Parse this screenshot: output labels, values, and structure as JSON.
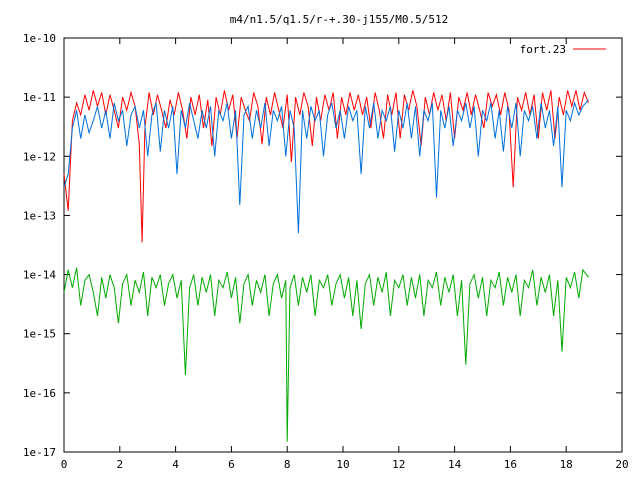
{
  "chart_data": {
    "type": "line",
    "title": "m4/n1.5/q1.5/r-+.30-j155/M0.5/512",
    "xlabel": "",
    "ylabel": "",
    "xlim": [
      0,
      20
    ],
    "ylim": [
      1e-17,
      1e-10
    ],
    "yscale": "log",
    "grid": false,
    "legend_position": "top-right",
    "x_ticks": [
      "0",
      "2",
      "4",
      "6",
      "8",
      "10",
      "12",
      "14",
      "16",
      "18",
      "20"
    ],
    "y_ticks": [
      "1e-10",
      "1e-11",
      "1e-12",
      "1e-13",
      "1e-14",
      "1e-15",
      "1e-16",
      "1e-17"
    ],
    "x_tick_values": [
      0,
      2,
      4,
      6,
      8,
      10,
      12,
      14,
      16,
      18,
      20
    ],
    "y_tick_values": [
      1e-10,
      1e-11,
      1e-12,
      1e-13,
      1e-14,
      1e-15,
      1e-16,
      1e-17
    ],
    "series": [
      {
        "name": "fort.23",
        "color": "#ff0000",
        "x": [
          0.0,
          0.15,
          0.3,
          0.45,
          0.6,
          0.75,
          0.9,
          1.05,
          1.2,
          1.35,
          1.5,
          1.65,
          1.8,
          1.95,
          2.1,
          2.25,
          2.4,
          2.55,
          2.7,
          2.8,
          2.9,
          3.05,
          3.2,
          3.35,
          3.5,
          3.65,
          3.8,
          3.95,
          4.1,
          4.25,
          4.4,
          4.55,
          4.7,
          4.85,
          5.0,
          5.15,
          5.3,
          5.45,
          5.6,
          5.75,
          5.9,
          6.05,
          6.2,
          6.35,
          6.5,
          6.65,
          6.8,
          6.95,
          7.1,
          7.25,
          7.4,
          7.55,
          7.7,
          7.85,
          8.0,
          8.15,
          8.3,
          8.45,
          8.6,
          8.75,
          8.9,
          9.05,
          9.2,
          9.35,
          9.5,
          9.65,
          9.8,
          9.95,
          10.1,
          10.25,
          10.4,
          10.55,
          10.7,
          10.85,
          11.0,
          11.15,
          11.3,
          11.45,
          11.6,
          11.75,
          11.9,
          12.05,
          12.2,
          12.35,
          12.5,
          12.65,
          12.8,
          12.95,
          13.1,
          13.25,
          13.4,
          13.55,
          13.7,
          13.85,
          14.0,
          14.15,
          14.3,
          14.45,
          14.6,
          14.75,
          14.9,
          15.05,
          15.2,
          15.35,
          15.5,
          15.65,
          15.8,
          15.95,
          16.1,
          16.25,
          16.4,
          16.55,
          16.7,
          16.85,
          17.0,
          17.15,
          17.3,
          17.45,
          17.6,
          17.75,
          17.9,
          18.05,
          18.2,
          18.35,
          18.5,
          18.65,
          18.8
        ],
        "values": [
          5e-13,
          1.2e-13,
          4e-12,
          8e-12,
          5e-12,
          1.1e-11,
          6e-12,
          1.3e-11,
          7e-12,
          1.2e-11,
          5e-12,
          1.1e-11,
          6e-12,
          3e-12,
          1e-11,
          6e-12,
          1.2e-11,
          7e-12,
          1.6e-12,
          3.5e-14,
          3e-12,
          1.2e-11,
          5e-12,
          1.1e-11,
          6e-12,
          3e-12,
          9e-12,
          5e-12,
          1.2e-11,
          6e-12,
          2e-12,
          1e-11,
          5e-12,
          1.1e-11,
          3e-12,
          9e-12,
          1.5e-12,
          1e-11,
          5e-12,
          1.3e-11,
          6e-12,
          1.1e-11,
          2e-12,
          1e-11,
          6e-12,
          4e-12,
          1.2e-11,
          7e-12,
          1.6e-12,
          1e-11,
          5e-12,
          1.2e-11,
          6e-12,
          3e-12,
          1.1e-11,
          8e-13,
          1e-11,
          5e-12,
          1.2e-11,
          7e-12,
          1.5e-12,
          1e-11,
          4e-12,
          1.1e-11,
          6e-12,
          1.2e-11,
          2e-12,
          1e-11,
          5e-12,
          1.2e-11,
          6e-12,
          1.1e-11,
          5e-12,
          1e-11,
          3e-12,
          1.2e-11,
          6e-12,
          2e-12,
          1.1e-11,
          5e-12,
          1.2e-11,
          2e-12,
          1.1e-11,
          6e-12,
          1.3e-11,
          7e-12,
          1.5e-12,
          1e-11,
          5e-12,
          1.2e-11,
          6e-12,
          1.1e-11,
          4e-12,
          1.2e-11,
          2e-12,
          1e-11,
          6e-12,
          1.2e-11,
          5e-12,
          1.1e-11,
          6e-12,
          3e-12,
          1.2e-11,
          7e-12,
          1.1e-11,
          5e-12,
          1.2e-11,
          6e-12,
          3e-13,
          1e-11,
          6e-12,
          1.2e-11,
          5e-12,
          1.1e-11,
          2e-12,
          1.2e-11,
          6e-12,
          1.3e-11,
          2e-12,
          1e-11,
          5e-12,
          1.3e-11,
          7e-12,
          1.3e-11,
          6e-12,
          1.2e-11,
          8e-12
        ]
      },
      {
        "name": "",
        "color": "#0070dd",
        "x": [
          0.0,
          0.15,
          0.3,
          0.45,
          0.6,
          0.75,
          0.9,
          1.05,
          1.2,
          1.35,
          1.5,
          1.65,
          1.8,
          1.95,
          2.1,
          2.25,
          2.4,
          2.55,
          2.7,
          2.85,
          3.0,
          3.15,
          3.3,
          3.45,
          3.6,
          3.75,
          3.9,
          4.05,
          4.2,
          4.35,
          4.5,
          4.65,
          4.8,
          4.95,
          5.1,
          5.25,
          5.4,
          5.55,
          5.7,
          5.85,
          6.0,
          6.15,
          6.3,
          6.45,
          6.6,
          6.75,
          6.9,
          7.05,
          7.2,
          7.35,
          7.5,
          7.65,
          7.8,
          7.95,
          8.1,
          8.25,
          8.4,
          8.55,
          8.7,
          8.85,
          9.0,
          9.15,
          9.3,
          9.45,
          9.6,
          9.75,
          9.9,
          10.05,
          10.2,
          10.35,
          10.5,
          10.65,
          10.8,
          10.95,
          11.1,
          11.25,
          11.4,
          11.55,
          11.7,
          11.85,
          12.0,
          12.15,
          12.3,
          12.45,
          12.6,
          12.75,
          12.9,
          13.05,
          13.2,
          13.35,
          13.5,
          13.65,
          13.8,
          13.95,
          14.1,
          14.25,
          14.4,
          14.55,
          14.7,
          14.85,
          15.0,
          15.15,
          15.3,
          15.45,
          15.6,
          15.75,
          15.9,
          16.05,
          16.2,
          16.35,
          16.5,
          16.65,
          16.8,
          16.95,
          17.1,
          17.25,
          17.4,
          17.55,
          17.7,
          17.85,
          18.0,
          18.15,
          18.3,
          18.45,
          18.6,
          18.8
        ],
        "values": [
          3e-13,
          5e-13,
          3e-12,
          6e-12,
          2e-12,
          5e-12,
          2.5e-12,
          4e-12,
          7e-12,
          3e-12,
          6e-12,
          2e-12,
          8e-12,
          4e-12,
          6e-12,
          1.5e-12,
          5e-12,
          7e-12,
          3e-12,
          6e-12,
          1e-12,
          5e-12,
          8e-12,
          1.2e-12,
          6e-12,
          3e-12,
          7e-12,
          5e-13,
          6e-12,
          3e-12,
          8e-12,
          4e-12,
          2e-12,
          6e-12,
          3e-12,
          7e-12,
          1e-12,
          6e-12,
          4e-12,
          8e-12,
          2e-12,
          6e-12,
          1.5e-13,
          5e-12,
          7e-12,
          2e-12,
          6e-12,
          3e-12,
          8e-12,
          1.5e-12,
          6e-12,
          4e-12,
          7e-12,
          1e-12,
          6e-12,
          3e-12,
          5e-14,
          6e-12,
          2e-12,
          7e-12,
          4e-12,
          6e-12,
          1e-12,
          5e-12,
          8e-12,
          3e-12,
          6e-12,
          2e-12,
          7e-12,
          4e-12,
          6e-12,
          5e-13,
          7e-12,
          3e-12,
          8e-12,
          2e-12,
          6e-12,
          4e-12,
          7e-12,
          1.2e-12,
          6e-12,
          3e-12,
          8e-12,
          2e-12,
          7e-12,
          1e-12,
          6e-12,
          4e-12,
          8e-12,
          2e-13,
          6e-12,
          3e-12,
          7e-12,
          1.5e-12,
          6e-12,
          4e-12,
          8e-12,
          3e-12,
          7e-12,
          1e-12,
          6e-12,
          4e-12,
          8e-12,
          2e-12,
          6e-12,
          1.2e-12,
          7e-12,
          3e-12,
          8e-12,
          1e-12,
          6e-12,
          4e-12,
          7e-12,
          2e-12,
          8e-12,
          3e-12,
          6e-12,
          1.5e-12,
          7e-12,
          3e-13,
          6e-12,
          4e-12,
          8e-12,
          5e-12,
          7e-12,
          9e-12
        ]
      },
      {
        "name": "",
        "color": "#00aa00",
        "x": [
          0.0,
          0.15,
          0.3,
          0.45,
          0.6,
          0.75,
          0.9,
          1.05,
          1.2,
          1.35,
          1.5,
          1.65,
          1.8,
          1.95,
          2.1,
          2.25,
          2.4,
          2.55,
          2.7,
          2.85,
          3.0,
          3.15,
          3.3,
          3.45,
          3.6,
          3.75,
          3.9,
          4.05,
          4.2,
          4.35,
          4.5,
          4.65,
          4.8,
          4.95,
          5.1,
          5.25,
          5.4,
          5.55,
          5.7,
          5.85,
          6.0,
          6.15,
          6.3,
          6.45,
          6.6,
          6.75,
          6.9,
          7.05,
          7.2,
          7.35,
          7.5,
          7.65,
          7.8,
          7.95,
          8.0,
          8.1,
          8.25,
          8.4,
          8.55,
          8.7,
          8.85,
          9.0,
          9.15,
          9.3,
          9.45,
          9.6,
          9.75,
          9.9,
          10.05,
          10.2,
          10.35,
          10.5,
          10.65,
          10.8,
          10.95,
          11.1,
          11.25,
          11.4,
          11.55,
          11.7,
          11.85,
          12.0,
          12.15,
          12.3,
          12.45,
          12.6,
          12.75,
          12.9,
          13.05,
          13.2,
          13.35,
          13.5,
          13.65,
          13.8,
          13.95,
          14.1,
          14.25,
          14.4,
          14.55,
          14.7,
          14.85,
          15.0,
          15.15,
          15.3,
          15.45,
          15.6,
          15.75,
          15.9,
          16.05,
          16.2,
          16.35,
          16.5,
          16.65,
          16.8,
          16.95,
          17.1,
          17.25,
          17.4,
          17.55,
          17.7,
          17.85,
          18.0,
          18.15,
          18.3,
          18.45,
          18.6,
          18.8
        ],
        "values": [
          5e-15,
          1.2e-14,
          6e-15,
          1.3e-14,
          3e-15,
          8e-15,
          1e-14,
          5e-15,
          2e-15,
          9e-15,
          4e-15,
          1e-14,
          6e-15,
          1.5e-15,
          7e-15,
          1e-14,
          3e-15,
          8e-15,
          5e-15,
          1.1e-14,
          2e-15,
          9e-15,
          6e-15,
          1e-14,
          3e-15,
          7e-15,
          1e-14,
          4e-15,
          8e-15,
          2e-16,
          6e-15,
          1e-14,
          3e-15,
          9e-15,
          5e-15,
          1e-14,
          2e-15,
          8e-15,
          6e-15,
          1.1e-14,
          4e-15,
          9e-15,
          1.5e-15,
          7e-15,
          1e-14,
          3e-15,
          8e-15,
          5e-15,
          1e-14,
          2e-15,
          7e-15,
          1e-14,
          4e-15,
          8e-15,
          1.5e-17,
          6e-15,
          1e-14,
          3e-15,
          9e-15,
          5e-15,
          1e-14,
          2e-15,
          8e-15,
          6e-15,
          1e-14,
          3e-15,
          7e-15,
          1e-14,
          4e-15,
          9e-15,
          2e-15,
          8e-15,
          1.2e-15,
          7e-15,
          1e-14,
          3e-15,
          9e-15,
          5e-15,
          1.1e-14,
          2e-15,
          8e-15,
          6e-15,
          1e-14,
          3e-15,
          9e-15,
          4e-15,
          1e-14,
          2e-15,
          8e-15,
          6e-15,
          1.1e-14,
          3e-15,
          9e-15,
          5e-15,
          1e-14,
          2e-15,
          8e-15,
          3e-16,
          7e-15,
          1e-14,
          4e-15,
          9e-15,
          2e-15,
          8e-15,
          6e-15,
          1.1e-14,
          3e-15,
          9e-15,
          5e-15,
          1e-14,
          2e-15,
          8e-15,
          6e-15,
          1.2e-14,
          3e-15,
          9e-15,
          5e-15,
          1e-14,
          2e-15,
          8e-15,
          5e-16,
          9e-15,
          6e-15,
          1.1e-14,
          4e-15,
          1.2e-14,
          9e-15
        ]
      }
    ]
  }
}
